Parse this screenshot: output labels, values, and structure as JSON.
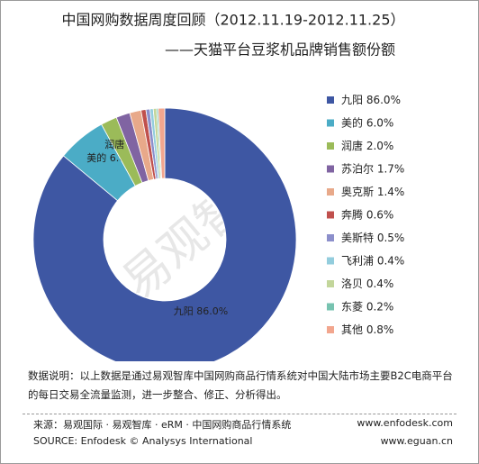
{
  "chart_data": {
    "type": "donut",
    "title": "中国网购数据周度回顾（2012.11.19-2012.11.25）",
    "subtitle": "——天猫平台豆浆机品牌销售额份额",
    "categories": [
      "九阳",
      "美的",
      "润唐",
      "苏泊尔",
      "奥克斯",
      "奔腾",
      "美斯特",
      "飞利浦",
      "洛贝",
      "东菱",
      "其他"
    ],
    "values": [
      86.0,
      6.0,
      2.0,
      1.7,
      1.4,
      0.6,
      0.5,
      0.4,
      0.4,
      0.2,
      0.8
    ],
    "value_labels": [
      "86.0%",
      "6.0%",
      "2.0%",
      "1.7%",
      "1.4%",
      "0.6%",
      "0.5%",
      "0.4%",
      "0.4%",
      "0.2%",
      "0.8%"
    ],
    "colors": [
      "#3e57a3",
      "#4bacc6",
      "#9bbb59",
      "#8064a2",
      "#e8a98a",
      "#c0504d",
      "#8c8fcb",
      "#93cddd",
      "#c3d69b",
      "#77c3b0",
      "#f2a68e"
    ],
    "legend": "right"
  },
  "note": "数据说明：以上数据是通过易观智库中国网购商品行情系统对中国大陆市场主要B2C电商平台的每日交易全流量监测，进一步整合、修正、分析得出。",
  "source": "来源：易观国际 · 易观智库 · eRM · 中国网购商品行情系统",
  "source_en": "SOURCE: Enfodesk © Analysys International",
  "websites": [
    "www.enfodesk.com",
    "www.eguan.cn"
  ],
  "watermark": "易观智库"
}
